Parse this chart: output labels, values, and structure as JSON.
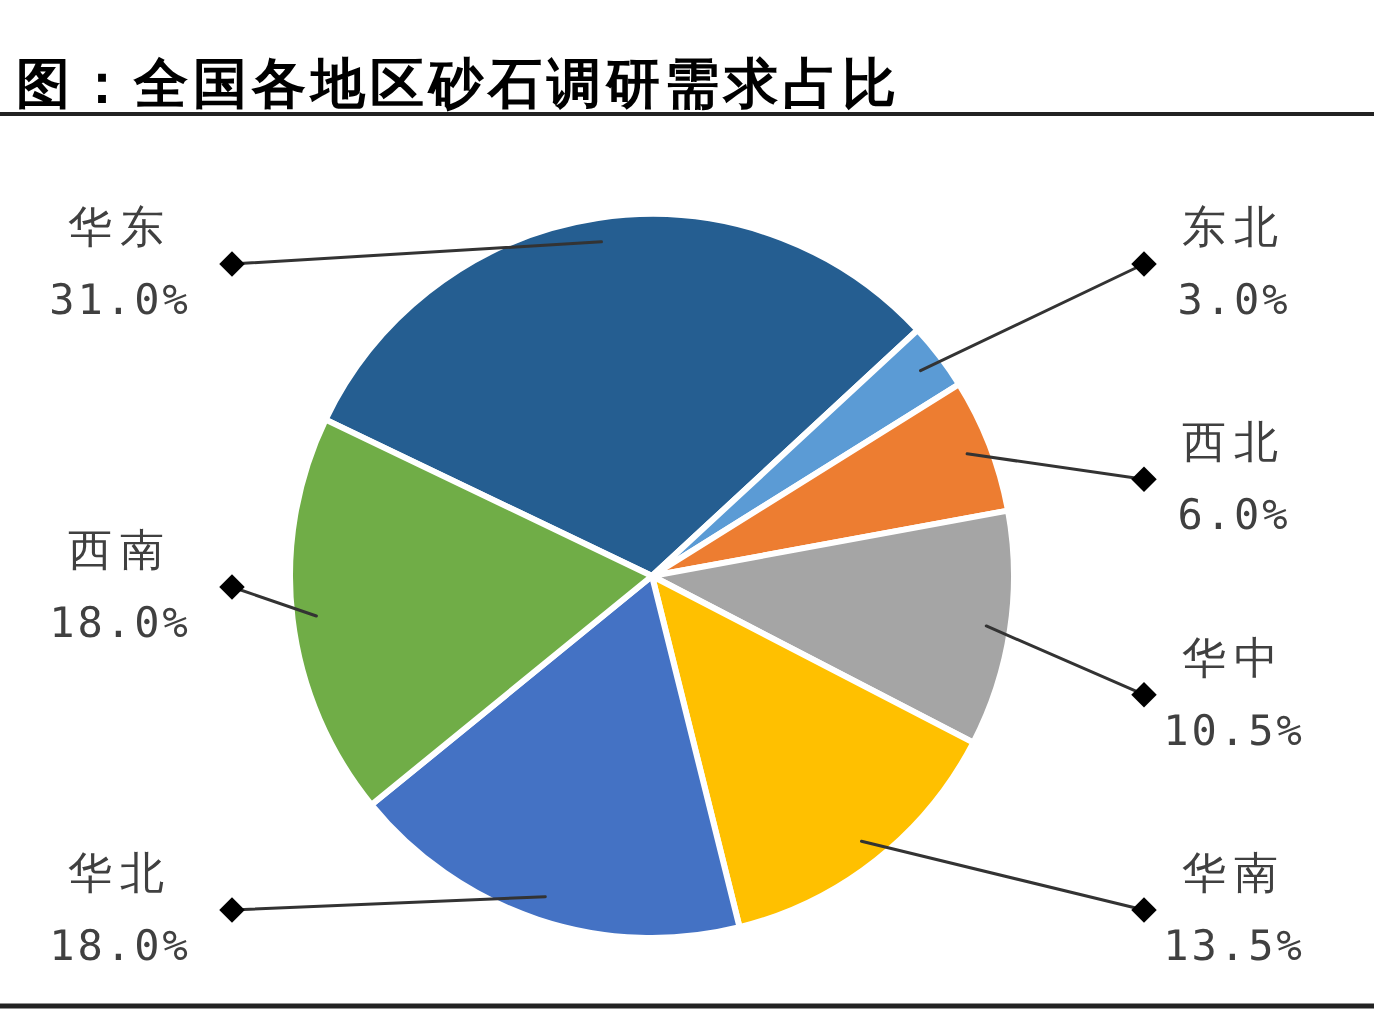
{
  "chart_data": {
    "type": "pie",
    "title": "图：全国各地区砂石调研需求占比",
    "categories": [
      "华东",
      "东北",
      "西北",
      "华中",
      "华南",
      "华北",
      "西南"
    ],
    "values": [
      31.0,
      3.0,
      6.0,
      10.5,
      13.5,
      18.0,
      18.0
    ],
    "colors": [
      "#255e91",
      "#5b9bd5",
      "#ed7d31",
      "#a5a5a5",
      "#ffc000",
      "#4472c4",
      "#70ad47"
    ],
    "value_labels": [
      "31.0%",
      "3.0%",
      "6.0%",
      "10.5%",
      "13.5%",
      "18.0%",
      "18.0%"
    ]
  }
}
